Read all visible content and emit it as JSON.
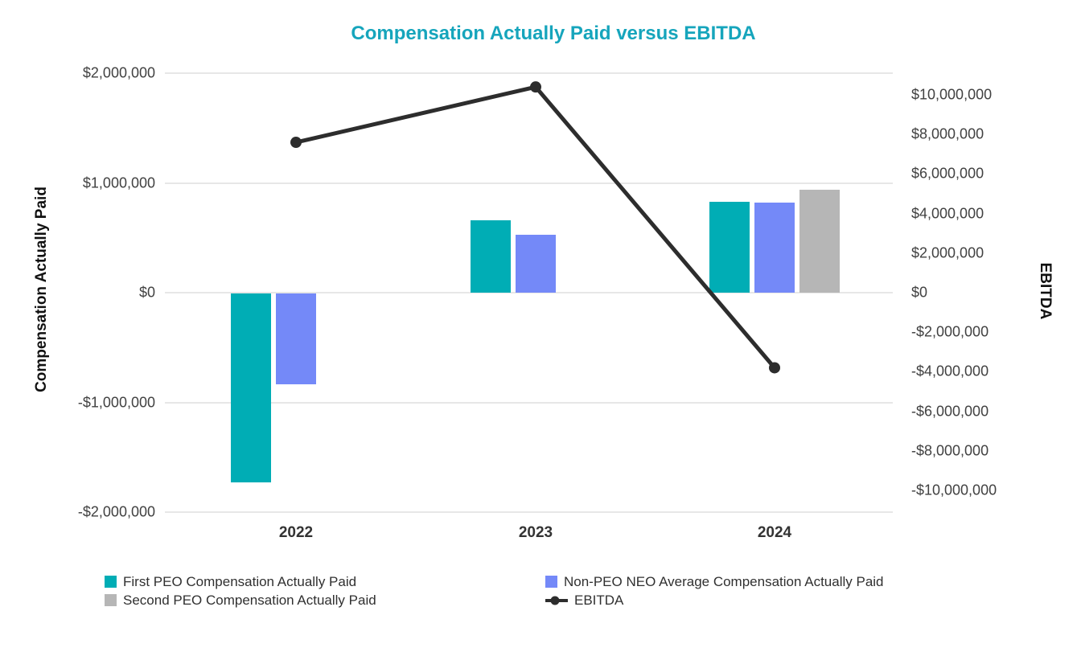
{
  "title": "Compensation Actually Paid versus EBITDA",
  "colors": {
    "title": "#16A5BC",
    "first_peo_bar": "#00ADB5",
    "non_peo_neo_bar": "#7489F8",
    "second_peo_bar": "#B6B6B6",
    "ebitda_line": "#2D2D2D",
    "gridline": "#E7E7E7",
    "tick_text": "#414141"
  },
  "axes": {
    "left": {
      "title": "Compensation Actually Paid",
      "ticks": [
        {
          "label": "$2,000,000",
          "value": 2000000
        },
        {
          "label": "$1,000,000",
          "value": 1000000
        },
        {
          "label": "$0",
          "value": 0
        },
        {
          "label": "-$1,000,000",
          "value": -1000000
        },
        {
          "label": "-$2,000,000",
          "value": -2000000
        }
      ]
    },
    "right": {
      "title": "EBITDA",
      "ticks": [
        {
          "label": "$10,000,000",
          "value": 10000000
        },
        {
          "label": "$8,000,000",
          "value": 8000000
        },
        {
          "label": "$6,000,000",
          "value": 6000000
        },
        {
          "label": "$4,000,000",
          "value": 4000000
        },
        {
          "label": "$2,000,000",
          "value": 2000000
        },
        {
          "label": "$0",
          "value": 0
        },
        {
          "label": "-$2,000,000",
          "value": -2000000
        },
        {
          "label": "-$4,000,000",
          "value": -4000000
        },
        {
          "label": "-$6,000,000",
          "value": -6000000
        },
        {
          "label": "-$8,000,000",
          "value": -8000000
        },
        {
          "label": "-$10,000,000",
          "value": -10000000
        }
      ]
    }
  },
  "legend": {
    "items": [
      {
        "label": "First PEO Compensation Actually Paid",
        "marker": "square",
        "color": "#00ADB5"
      },
      {
        "label": "Non-PEO NEO Average Compensation Actually Paid",
        "marker": "square",
        "color": "#7489F8"
      },
      {
        "label": "Second PEO Compensation Actually Paid",
        "marker": "square",
        "color": "#B6B6B6"
      },
      {
        "label": "EBITDA",
        "marker": "line-dot",
        "color": "#2D2D2D"
      }
    ]
  },
  "chart_data": {
    "type": "bar",
    "subtype": "grouped-bars-with-line-overlay",
    "title": "Compensation Actually Paid versus EBITDA",
    "categories": [
      "2022",
      "2023",
      "2024"
    ],
    "series": [
      {
        "name": "First PEO Compensation Actually Paid",
        "type": "bar",
        "axis": "left",
        "color": "#00ADB5",
        "values": [
          -1720000,
          660000,
          830000
        ]
      },
      {
        "name": "Non-PEO NEO Average Compensation Actually Paid",
        "type": "bar",
        "axis": "left",
        "color": "#7489F8",
        "values": [
          -825000,
          530000,
          820000
        ]
      },
      {
        "name": "Second PEO Compensation Actually Paid",
        "type": "bar",
        "axis": "left",
        "color": "#B6B6B6",
        "values": [
          null,
          null,
          940000
        ]
      },
      {
        "name": "EBITDA",
        "type": "line",
        "axis": "right",
        "color": "#2D2D2D",
        "values": [
          7600000,
          10400000,
          -3800000
        ]
      }
    ],
    "left_axis": {
      "label": "Compensation Actually Paid",
      "range": [
        -2000000,
        2000000
      ],
      "tick_step": 1000000
    },
    "right_axis": {
      "label": "EBITDA",
      "labeled_range": [
        -10000000,
        10000000
      ],
      "tick_step": 2000000
    },
    "grid": true,
    "legend_position": "bottom"
  }
}
